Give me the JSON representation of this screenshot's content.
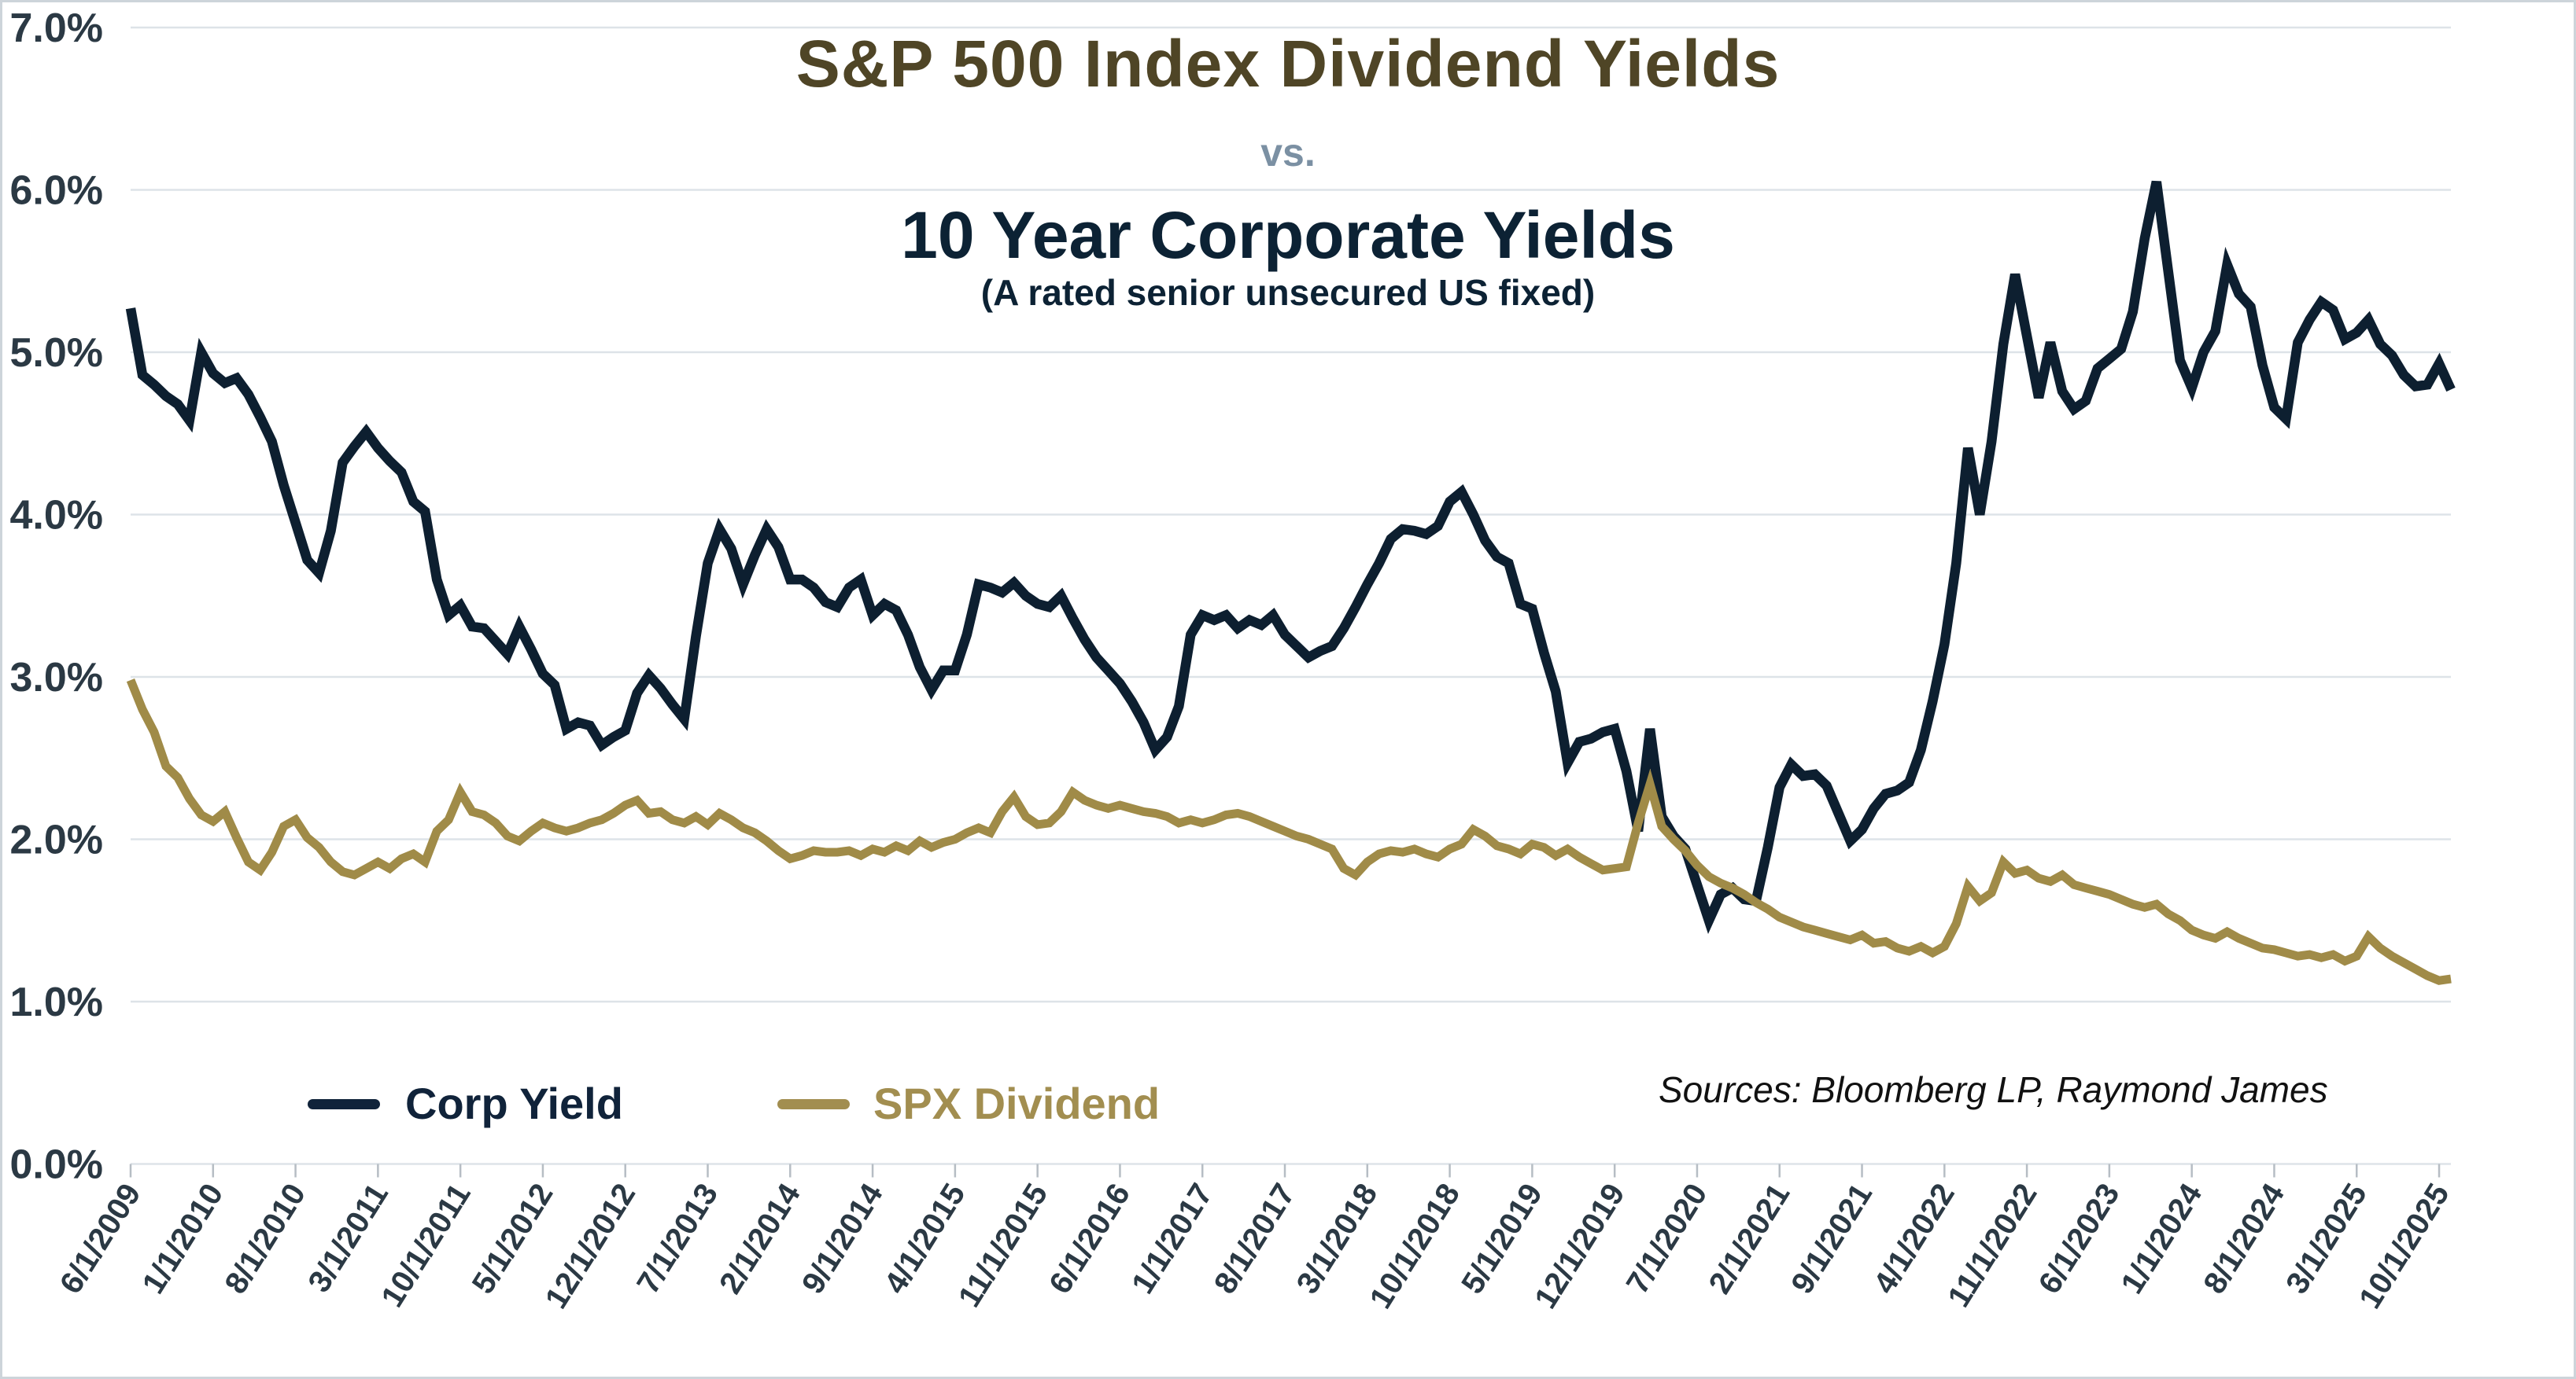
{
  "title": {
    "line1": "S&P 500 Index Dividend Yields",
    "vs": "vs.",
    "line2": "10 Year Corporate Yields",
    "subtitle": "(A rated senior unsecured US fixed)"
  },
  "sources": "Sources: Bloomberg LP, Raymond James",
  "legend": {
    "items": [
      {
        "label": "Corp Yield",
        "color": "#10233a"
      },
      {
        "label": "SPX Dividend",
        "color": "#a28e50"
      }
    ]
  },
  "colors": {
    "title1": "#4f4526",
    "vs": "#7b90a3",
    "title2": "#0c2234",
    "subtitle": "#0c2234",
    "axis_label": "#2b3944",
    "gridline": "#dde3e8",
    "tick": "#b6bdc4",
    "corp_line": "#0d1f30",
    "spx_line": "#a08b48",
    "background": "#ffffff",
    "border": "#cdd4da"
  },
  "chart_data": {
    "type": "line",
    "title": "S&P 500 Index Dividend Yields vs. 10 Year Corporate Yields (A rated senior unsecured US fixed)",
    "xlabel": "",
    "ylabel": "",
    "ylim": [
      0,
      7
    ],
    "grid": true,
    "legend_position": "bottom-left",
    "y_tick_labels": [
      "0.0%",
      "1.0%",
      "2.0%",
      "3.0%",
      "4.0%",
      "5.0%",
      "6.0%",
      "7.0%"
    ],
    "x_monthly_start": "6/1/2009",
    "x_monthly_end": "11/1/2025",
    "x_tick_step_months": 7,
    "x_tick_labels": [
      "6/1/2009",
      "1/1/2010",
      "8/1/2010",
      "3/1/2011",
      "10/1/2011",
      "5/1/2012",
      "12/1/2012",
      "7/1/2013",
      "2/1/2014",
      "9/1/2014",
      "4/1/2015",
      "11/1/2015",
      "6/1/2016",
      "1/1/2017",
      "8/1/2017",
      "3/1/2018",
      "10/1/2018",
      "5/1/2019",
      "12/1/2019",
      "7/1/2020",
      "2/1/2021",
      "9/1/2021",
      "4/1/2022",
      "11/1/2022",
      "6/1/2023",
      "1/1/2024",
      "8/1/2024",
      "3/1/2025",
      "10/1/2025"
    ],
    "series": [
      {
        "name": "Corp Yield",
        "color": "#0d1f30",
        "stroke_width": 12.5,
        "values": [
          5.27,
          4.86,
          4.8,
          4.73,
          4.68,
          4.58,
          5.0,
          4.87,
          4.81,
          4.84,
          4.74,
          4.6,
          4.45,
          4.18,
          3.95,
          3.72,
          3.64,
          3.9,
          4.32,
          4.42,
          4.51,
          4.41,
          4.33,
          4.26,
          4.08,
          4.02,
          3.6,
          3.38,
          3.44,
          3.31,
          3.3,
          3.22,
          3.14,
          3.31,
          3.17,
          3.02,
          2.95,
          2.68,
          2.72,
          2.7,
          2.58,
          2.63,
          2.67,
          2.9,
          3.01,
          2.93,
          2.83,
          2.74,
          3.25,
          3.7,
          3.91,
          3.79,
          3.57,
          3.75,
          3.91,
          3.8,
          3.6,
          3.6,
          3.55,
          3.46,
          3.43,
          3.55,
          3.6,
          3.38,
          3.45,
          3.41,
          3.26,
          3.06,
          2.92,
          3.04,
          3.04,
          3.26,
          3.57,
          3.55,
          3.52,
          3.58,
          3.5,
          3.45,
          3.43,
          3.5,
          3.36,
          3.23,
          3.12,
          3.04,
          2.96,
          2.85,
          2.72,
          2.55,
          2.63,
          2.82,
          3.26,
          3.38,
          3.35,
          3.38,
          3.3,
          3.35,
          3.32,
          3.38,
          3.26,
          3.19,
          3.12,
          3.16,
          3.19,
          3.3,
          3.43,
          3.57,
          3.7,
          3.85,
          3.91,
          3.9,
          3.88,
          3.93,
          4.08,
          4.14,
          4.0,
          3.84,
          3.74,
          3.7,
          3.45,
          3.42,
          3.15,
          2.91,
          2.47,
          2.6,
          2.62,
          2.66,
          2.68,
          2.42,
          2.05,
          2.68,
          2.14,
          2.02,
          1.94,
          1.72,
          1.5,
          1.66,
          1.7,
          1.63,
          1.62,
          1.95,
          2.32,
          2.46,
          2.39,
          2.4,
          2.33,
          2.16,
          1.99,
          2.06,
          2.19,
          2.28,
          2.3,
          2.35,
          2.55,
          2.85,
          3.2,
          3.7,
          4.41,
          4.0,
          4.45,
          5.05,
          5.48,
          5.1,
          4.72,
          5.06,
          4.76,
          4.65,
          4.7,
          4.9,
          4.96,
          5.02,
          5.25,
          5.7,
          6.05,
          5.5,
          4.95,
          4.78,
          5.0,
          5.13,
          5.54,
          5.36,
          5.28,
          4.92,
          4.66,
          4.59,
          5.06,
          5.2,
          5.31,
          5.26,
          5.08,
          5.12,
          5.2,
          5.05,
          4.98,
          4.86,
          4.79,
          4.8,
          4.93,
          4.77
        ]
      },
      {
        "name": "SPX Dividend",
        "color": "#a08b48",
        "stroke_width": 11,
        "values": [
          2.98,
          2.8,
          2.66,
          2.45,
          2.38,
          2.25,
          2.15,
          2.11,
          2.17,
          2.01,
          1.86,
          1.81,
          1.92,
          2.08,
          2.12,
          2.01,
          1.95,
          1.86,
          1.8,
          1.78,
          1.82,
          1.86,
          1.82,
          1.88,
          1.91,
          1.86,
          2.05,
          2.12,
          2.29,
          2.17,
          2.15,
          2.1,
          2.02,
          1.99,
          2.05,
          2.1,
          2.07,
          2.05,
          2.07,
          2.1,
          2.12,
          2.16,
          2.21,
          2.24,
          2.16,
          2.17,
          2.12,
          2.1,
          2.14,
          2.09,
          2.16,
          2.12,
          2.07,
          2.04,
          1.99,
          1.93,
          1.88,
          1.9,
          1.93,
          1.92,
          1.92,
          1.93,
          1.9,
          1.94,
          1.92,
          1.96,
          1.93,
          1.99,
          1.95,
          1.98,
          2.0,
          2.04,
          2.07,
          2.04,
          2.17,
          2.26,
          2.14,
          2.09,
          2.1,
          2.17,
          2.29,
          2.24,
          2.21,
          2.19,
          2.21,
          2.19,
          2.17,
          2.16,
          2.14,
          2.1,
          2.12,
          2.1,
          2.12,
          2.15,
          2.16,
          2.14,
          2.11,
          2.08,
          2.05,
          2.02,
          2.0,
          1.97,
          1.94,
          1.82,
          1.78,
          1.86,
          1.91,
          1.93,
          1.92,
          1.94,
          1.91,
          1.89,
          1.94,
          1.97,
          2.06,
          2.02,
          1.96,
          1.94,
          1.91,
          1.97,
          1.95,
          1.9,
          1.94,
          1.89,
          1.85,
          1.81,
          1.82,
          1.83,
          2.1,
          2.34,
          2.08,
          2.0,
          1.93,
          1.84,
          1.77,
          1.73,
          1.7,
          1.66,
          1.61,
          1.57,
          1.52,
          1.49,
          1.46,
          1.44,
          1.42,
          1.4,
          1.38,
          1.41,
          1.36,
          1.37,
          1.33,
          1.31,
          1.34,
          1.3,
          1.34,
          1.48,
          1.71,
          1.62,
          1.67,
          1.86,
          1.79,
          1.81,
          1.76,
          1.74,
          1.78,
          1.72,
          1.7,
          1.68,
          1.66,
          1.63,
          1.6,
          1.58,
          1.6,
          1.54,
          1.5,
          1.44,
          1.41,
          1.39,
          1.43,
          1.39,
          1.36,
          1.33,
          1.32,
          1.3,
          1.28,
          1.29,
          1.27,
          1.29,
          1.25,
          1.28,
          1.4,
          1.33,
          1.28,
          1.24,
          1.2,
          1.16,
          1.13,
          1.14
        ]
      }
    ],
    "layout": {
      "plot_left": 163,
      "plot_right": 3112,
      "y_at_7pct": 32,
      "y_at_0pct": 1477.5,
      "tick_len": 17,
      "x_label_rotation_deg": -58,
      "x_label_font_size": 40,
      "y_label_font_size": 52
    }
  }
}
